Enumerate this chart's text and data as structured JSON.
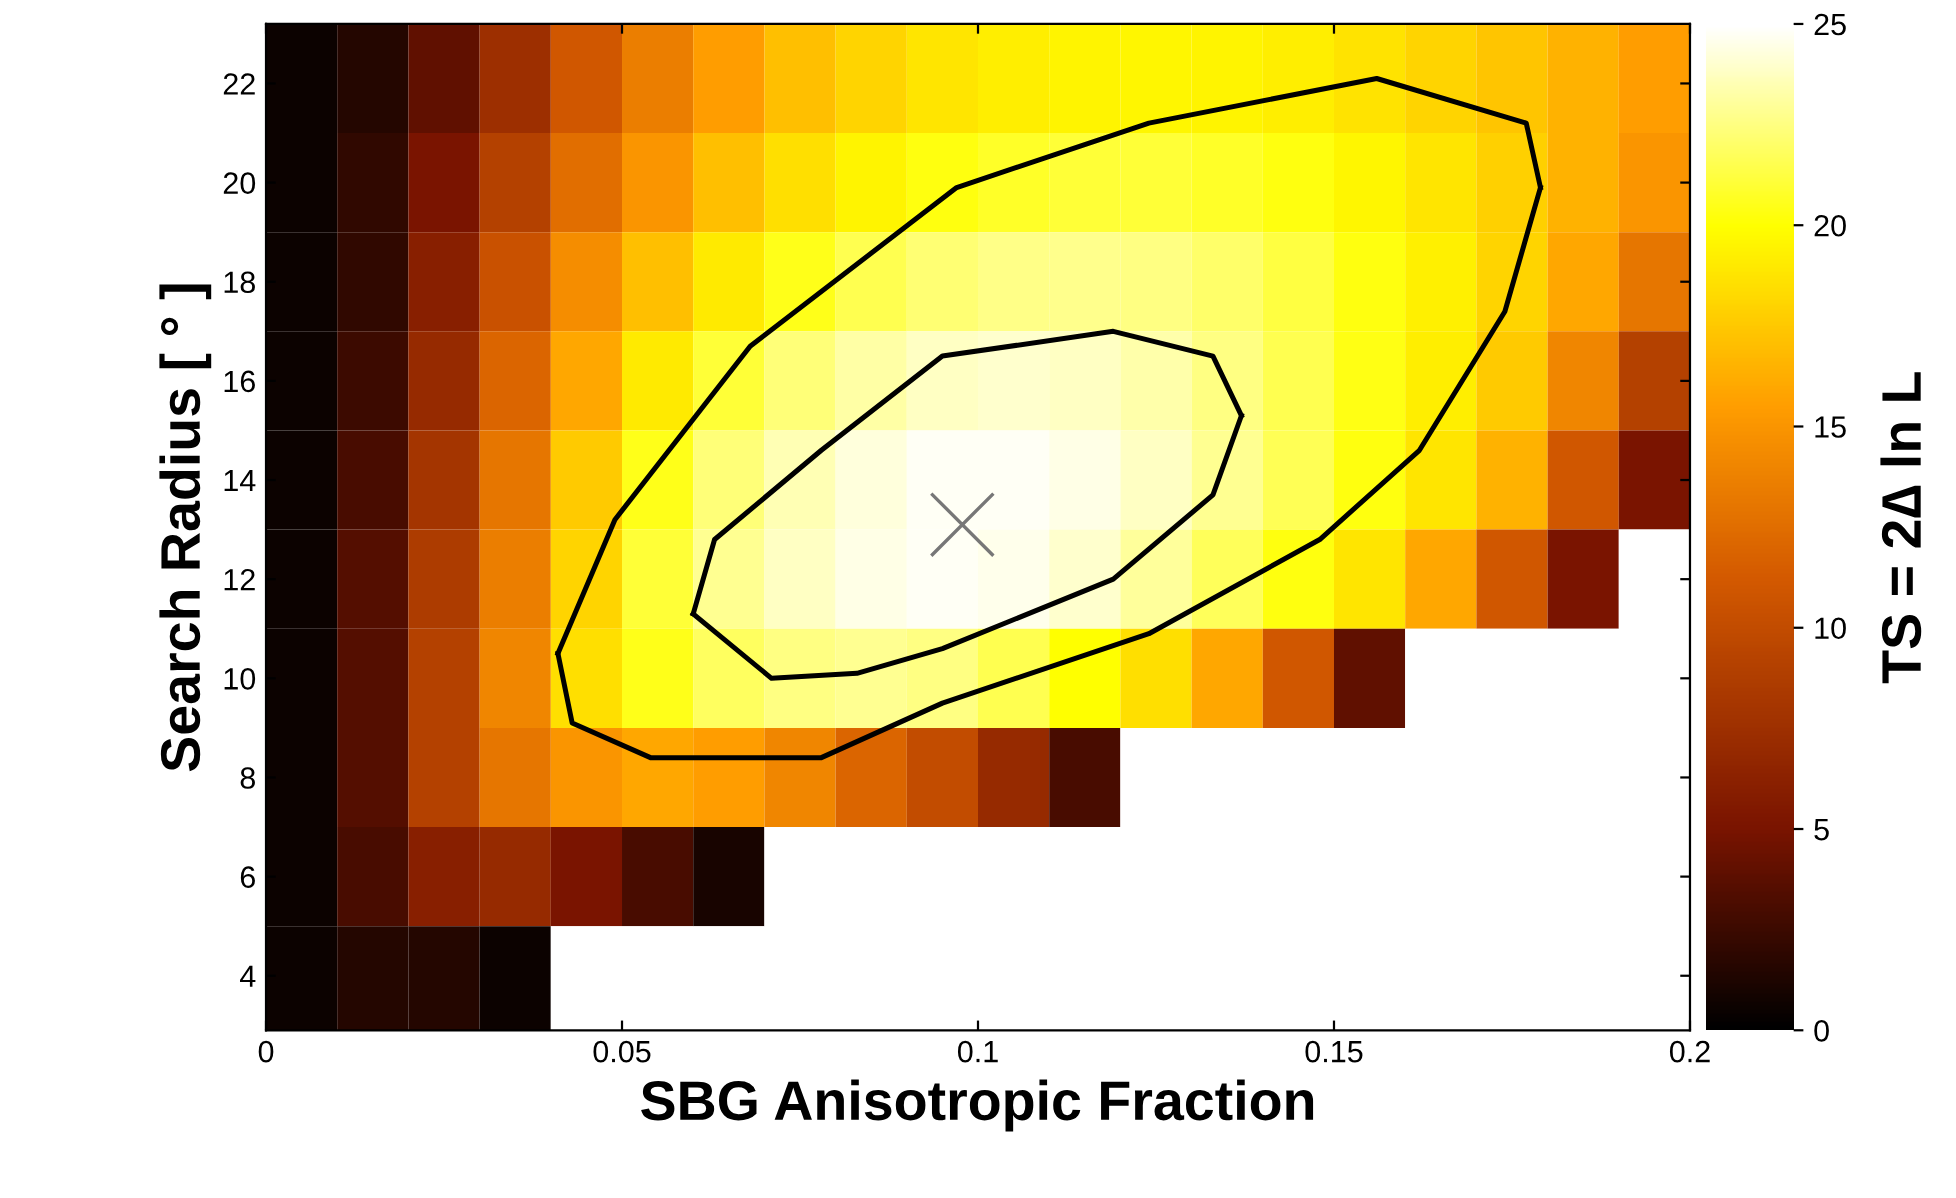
{
  "chart_data": {
    "type": "heatmap",
    "xlabel": "SBG Anisotropic Fraction",
    "ylabel": "Search Radius [ ° ]",
    "clabel": "TS = 2∆ ln L",
    "x": [
      0.005,
      0.015,
      0.025,
      0.035,
      0.045,
      0.055,
      0.065,
      0.075,
      0.085,
      0.095,
      0.105,
      0.115,
      0.125,
      0.135,
      0.145,
      0.155,
      0.165,
      0.175,
      0.185,
      0.195
    ],
    "y": [
      22,
      20,
      18,
      16,
      14,
      12,
      10,
      8,
      6,
      4
    ],
    "cells": [
      [
        0.5,
        1.5,
        4,
        7.5,
        11,
        13.5,
        15.5,
        17,
        18,
        18.8,
        19.2,
        19.5,
        19.6,
        19.5,
        19.2,
        18.7,
        18,
        17.3,
        16.5,
        15.5
      ],
      [
        0.5,
        2,
        5,
        9,
        12.5,
        15,
        17,
        18.5,
        19.5,
        20.3,
        20.8,
        21,
        21,
        20.8,
        20.3,
        19.6,
        18.8,
        17.8,
        16.5,
        15
      ],
      [
        0.5,
        2,
        6,
        10.5,
        14.5,
        17,
        19,
        20.5,
        21.5,
        22.2,
        22.6,
        22.7,
        22.5,
        22,
        21.2,
        20.3,
        19.3,
        18,
        16,
        13
      ],
      [
        0.5,
        2.5,
        7,
        12,
        16,
        19,
        21,
        22.3,
        23.2,
        23.8,
        24,
        23.8,
        23.3,
        22.5,
        21.5,
        20.4,
        19.2,
        17.5,
        14,
        9
      ],
      [
        0.5,
        3,
        8,
        13,
        17.5,
        20.5,
        22.3,
        23.5,
        24.3,
        24.8,
        24.8,
        24.5,
        23.8,
        22.8,
        21.6,
        20.3,
        18.8,
        16.5,
        11,
        5
      ],
      [
        0.5,
        3.5,
        8.5,
        13.5,
        18,
        21,
        22.8,
        23.8,
        24.5,
        24.8,
        24.6,
        24,
        23,
        21.7,
        20.3,
        18.8,
        16,
        11,
        5,
        null
      ],
      [
        0.5,
        3.5,
        9,
        14,
        18.5,
        20.5,
        21.8,
        22.5,
        22.8,
        22.5,
        21.5,
        20,
        18.5,
        16,
        11,
        4,
        null,
        null,
        null,
        null
      ],
      [
        0.5,
        3.5,
        9,
        13,
        15,
        16,
        15.5,
        14,
        12,
        10,
        7,
        3,
        null,
        null,
        null,
        null,
        null,
        null,
        null,
        null
      ],
      [
        0.5,
        3,
        6,
        7,
        5,
        3,
        1,
        null,
        null,
        null,
        null,
        null,
        null,
        null,
        null,
        null,
        null,
        null,
        null,
        null
      ],
      [
        0.5,
        1.5,
        1.5,
        0.5,
        null,
        null,
        null,
        null,
        null,
        null,
        null,
        null,
        null,
        null,
        null,
        null,
        null,
        null,
        null,
        null
      ]
    ],
    "clim": [
      0,
      25
    ],
    "cticks": [
      0,
      5,
      10,
      15,
      20,
      25
    ],
    "xlim": [
      0,
      0.2
    ],
    "xticks": [
      0,
      0.05,
      0.1,
      0.15,
      0.2
    ],
    "ylim": [
      2.9,
      23.2
    ],
    "yticks": [
      4,
      6,
      8,
      10,
      12,
      14,
      16,
      18,
      20,
      22
    ],
    "series": [
      {
        "type": "line",
        "color": "#000000",
        "x": [
          0.041,
          0.043,
          0.054,
          0.078,
          0.095,
          0.124,
          0.148,
          0.162,
          0.174,
          0.179
        ],
        "values": [
          10.5,
          9.1,
          8.4,
          8.4,
          9.5,
          10.9,
          12.8,
          14.6,
          17.4,
          19.9
        ]
      },
      {
        "type": "line",
        "color": "#000000",
        "x": [
          0.041,
          0.049,
          0.068,
          0.097,
          0.124,
          0.156,
          0.177,
          0.179
        ],
        "values": [
          10.5,
          13.2,
          16.7,
          19.9,
          21.2,
          22.1,
          21.2,
          19.9
        ]
      },
      {
        "type": "line",
        "color": "#000000",
        "x": [
          0.06,
          0.071,
          0.083,
          0.095,
          0.119,
          0.133,
          0.137
        ],
        "values": [
          11.3,
          10.0,
          10.1,
          10.6,
          12.0,
          13.7,
          15.3
        ]
      },
      {
        "type": "line",
        "color": "#000000",
        "x": [
          0.06,
          0.063,
          0.078,
          0.095,
          0.119,
          0.133,
          0.137
        ],
        "values": [
          11.3,
          12.8,
          14.6,
          16.5,
          17.0,
          16.5,
          15.3
        ]
      },
      {
        "type": "scatter",
        "marker": "cross",
        "color": "#777777",
        "x": [
          0.0978
        ],
        "values": [
          13.1
        ]
      }
    ],
    "grid": false,
    "legend": false
  }
}
